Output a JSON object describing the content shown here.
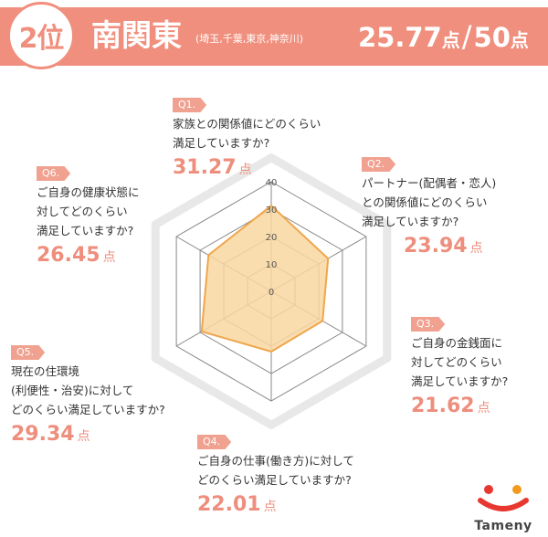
{
  "header": {
    "rank": "2位",
    "region": "南関東",
    "prefectures": "(埼玉,千葉,東京,神奈川)",
    "score": "25.77",
    "score_unit": "点",
    "slash": "/",
    "max_score": "50",
    "max_unit": "点"
  },
  "questions": [
    {
      "badge": "Q1.",
      "text": "家族との関係値にどのくらい\n満足していますか?",
      "value": "31.27",
      "unit": "点"
    },
    {
      "badge": "Q2.",
      "text": "パートナー(配偶者・恋人)\nとの関係値にどのくらい\n満足していますか?",
      "value": "23.94",
      "unit": "点"
    },
    {
      "badge": "Q3.",
      "text": "ご自身の金銭面に\n対してどのくらい\n満足していますか?",
      "value": "21.62",
      "unit": "点"
    },
    {
      "badge": "Q4.",
      "text": "ご自身の仕事(働き方)に対して\nどのくらい満足していますか?",
      "value": "22.01",
      "unit": "点"
    },
    {
      "badge": "Q5.",
      "text": "現在の住環境\n(利便性・治安)に対して\nどのくらい満足していますか?",
      "value": "29.34",
      "unit": "点"
    },
    {
      "badge": "Q6.",
      "text": "ご自身の健康状態に\n対してどのくらい\n満足していますか?",
      "value": "26.45",
      "unit": "点"
    }
  ],
  "chart_data": {
    "type": "radar",
    "categories": [
      "Q1.",
      "Q2.",
      "Q3.",
      "Q4.",
      "Q5.",
      "Q6."
    ],
    "values": [
      31.27,
      23.94,
      21.62,
      22.01,
      29.34,
      26.45
    ],
    "rlim": [
      0,
      40
    ],
    "ticks": [
      "0",
      "10",
      "20",
      "30",
      "40"
    ],
    "grid": true,
    "colors": {
      "fill": "#f9d7a0",
      "stroke": "#efa64c",
      "grid": "#888888",
      "outer": "#e8e8e8"
    }
  },
  "logo": {
    "text": "Tameny"
  },
  "colors": {
    "accent": "#f08f7d",
    "value": "#ee8e7d"
  }
}
